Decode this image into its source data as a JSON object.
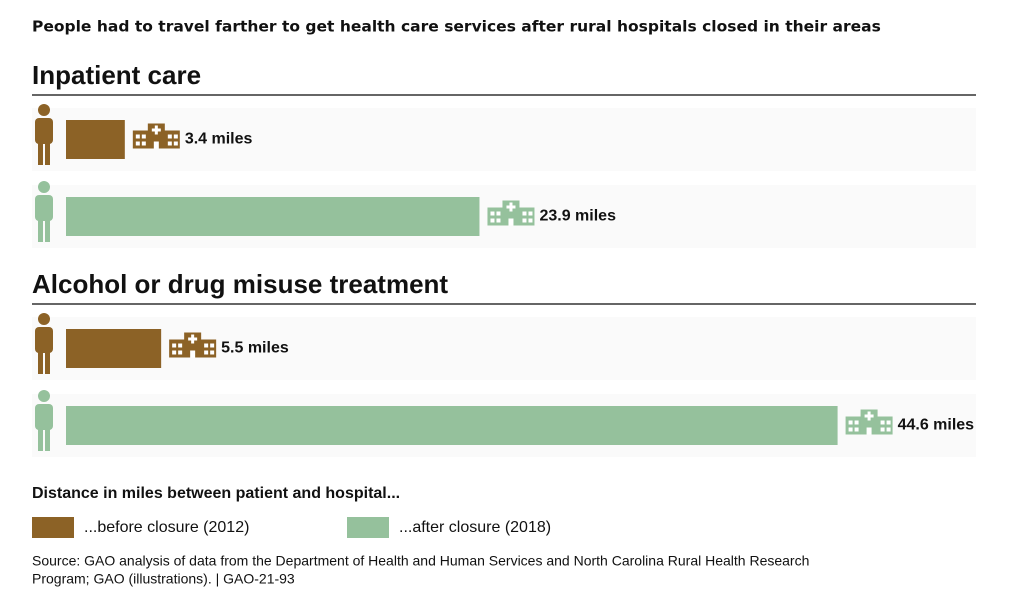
{
  "chart_data": {
    "type": "bar",
    "orientation": "horizontal",
    "title": "People had to travel farther to get health care services after rural hospitals closed in their areas",
    "categories": [
      "Inpatient care",
      "Alcohol or drug misuse treatment"
    ],
    "series": [
      {
        "name": "...before closure (2012)",
        "color": "#8c6226",
        "values": [
          3.4,
          5.5
        ],
        "value_labels": [
          "3.4 miles",
          "5.5 miles"
        ]
      },
      {
        "name": "...after closure (2018)",
        "color": "#95c19c",
        "values": [
          23.9,
          44.6
        ],
        "value_labels": [
          "23.9 miles",
          "44.6 miles"
        ]
      }
    ],
    "legend_title": "Distance in miles between patient and hospital...",
    "source": [
      "Source: GAO analysis of data from the Department of Health and Human Services and North Carolina Rural Health Research",
      "Program;  GAO (illustrations).  |  GAO-21-93"
    ]
  }
}
